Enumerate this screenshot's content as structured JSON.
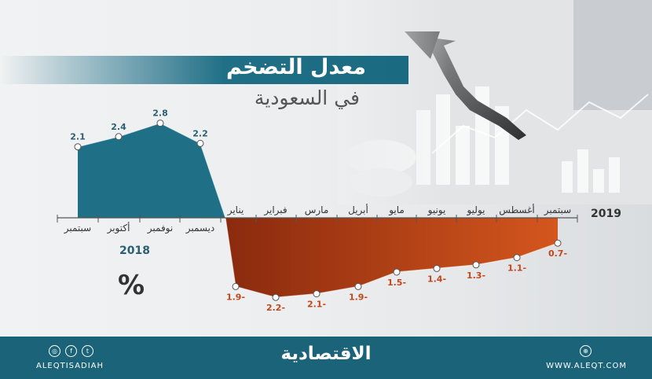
{
  "title": "معدل التضخم",
  "subtitle": "في السعودية",
  "year_2018": "2018",
  "year_2019": "2019",
  "unit": "%",
  "brand": "الاقتصادية",
  "footer": {
    "handle": "ALEQTISADIAH",
    "website": "WWW.ALEQT.COM"
  },
  "colors": {
    "teal": "#1f6f86",
    "orange": "#c3471a",
    "label_2018": "#2a5f70",
    "label_2019": "#c3471a"
  },
  "chart_data": {
    "type": "area",
    "x": [
      "سبتمبر",
      "أكتوبر",
      "نوفمبر",
      "ديسمبر",
      "يناير",
      "فبراير",
      "مارس",
      "أبريل",
      "مايو",
      "يونيو",
      "يوليو",
      "أغسطس",
      "سبتمبر"
    ],
    "values": [
      2.1,
      2.4,
      2.8,
      2.2,
      -1.9,
      -2.2,
      -2.1,
      -1.9,
      -1.5,
      -1.4,
      -1.3,
      -1.1,
      -0.7
    ],
    "labels": [
      "2.1",
      "2.4",
      "2.8",
      "2.2",
      "1.9-",
      "2.2-",
      "2.1-",
      "1.9-",
      "1.5-",
      "1.4-",
      "1.3-",
      "1.1-",
      "0.7-"
    ],
    "series": [
      {
        "name": "2018",
        "range": [
          0,
          3
        ]
      },
      {
        "name": "2019",
        "range": [
          4,
          12
        ]
      }
    ],
    "ylim": [
      -2.4,
      3.0
    ]
  }
}
